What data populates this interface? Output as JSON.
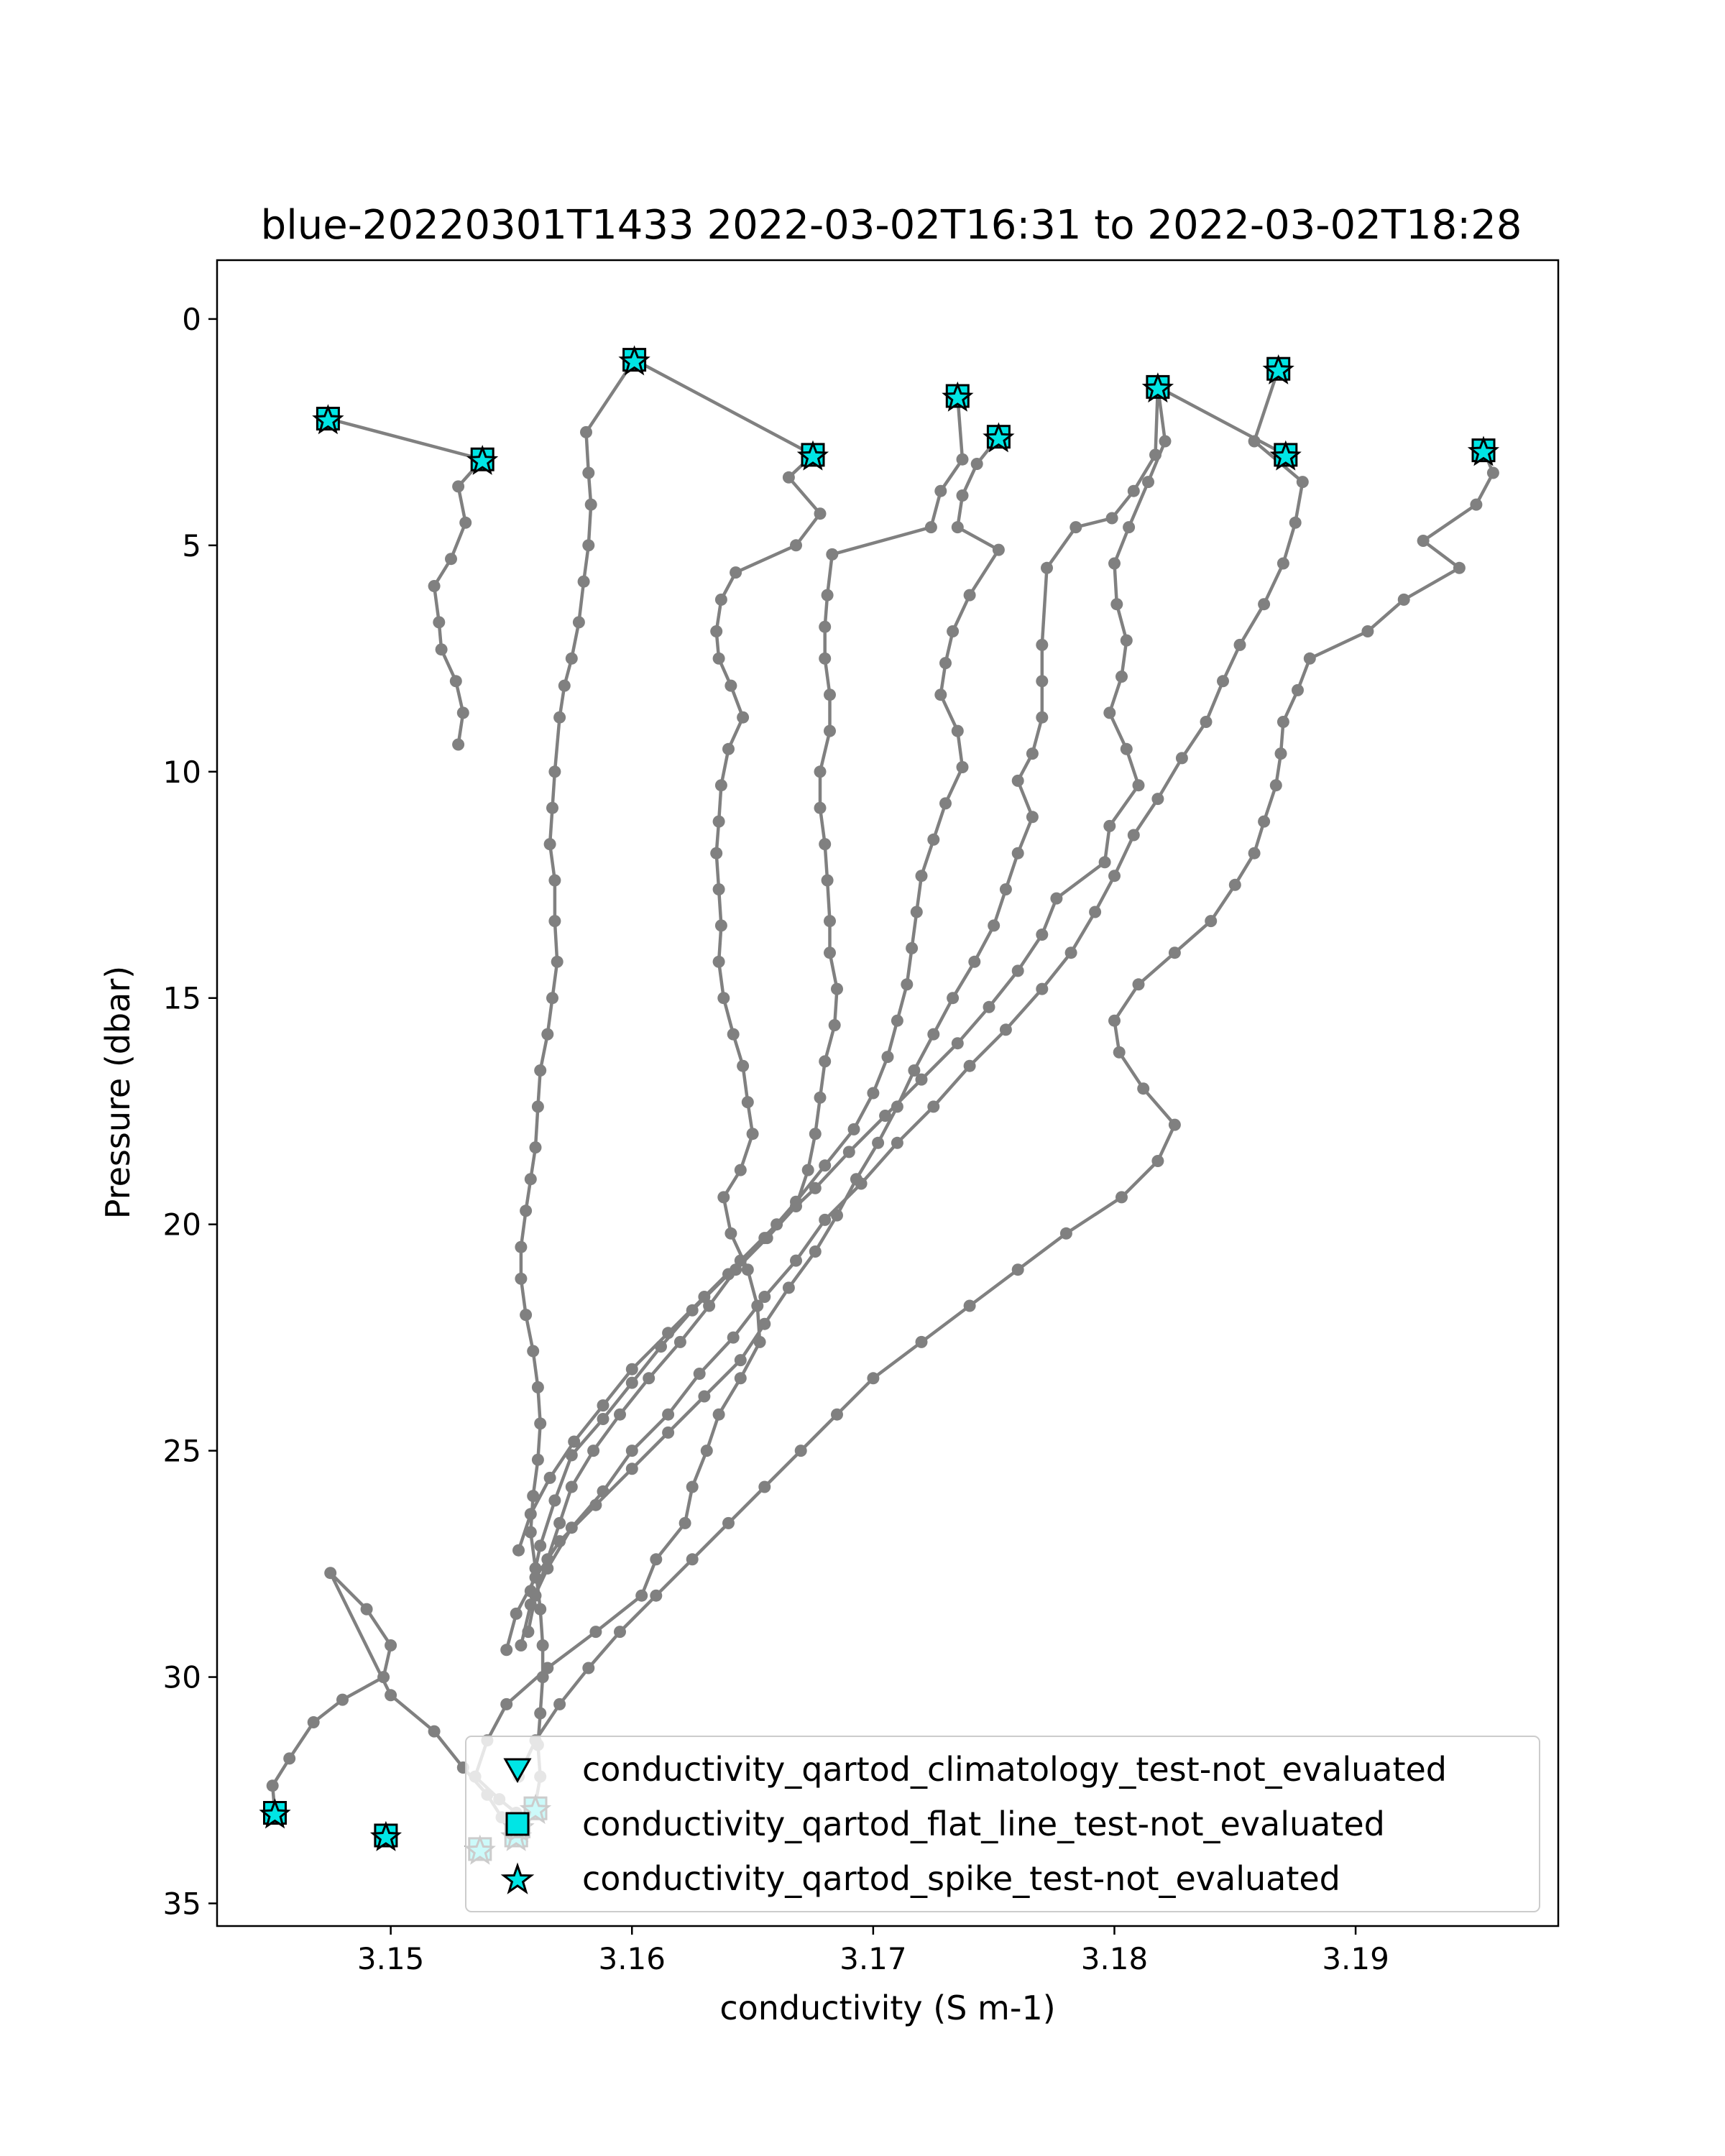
{
  "chart_data": {
    "type": "line",
    "title": "blue-20220301T1433 2022-03-02T16:31 to 2022-03-02T18:28",
    "xlabel": "conductivity (S m-1)",
    "ylabel": "Pressure (dbar)",
    "xlim": [
      3.1428,
      3.1984
    ],
    "ylim": [
      35.5,
      -1.3
    ],
    "y_inverted": true,
    "grid": false,
    "xticks": [
      3.15,
      3.16,
      3.17,
      3.18,
      3.19
    ],
    "xtick_labels": [
      "3.15",
      "3.16",
      "3.17",
      "3.18",
      "3.19"
    ],
    "yticks": [
      0,
      5,
      10,
      15,
      20,
      25,
      30,
      35
    ],
    "ytick_labels": [
      "0",
      "5",
      "10",
      "15",
      "20",
      "25",
      "30",
      "35"
    ],
    "line_color": "#808080",
    "marker_color": "#00e5e5",
    "legend_position": "lower right",
    "legend": [
      {
        "label": "conductivity_qartod_climatology_test-not_evaluated",
        "marker": "triangle-down"
      },
      {
        "label": "conductivity_qartod_flat_line_test-not_evaluated",
        "marker": "square"
      },
      {
        "label": "conductivity_qartod_spike_test-not_evaluated",
        "marker": "star"
      }
    ],
    "series": [
      {
        "x": [
          3.1474,
          3.1538,
          3.1528,
          3.1531,
          3.1525,
          3.1518,
          3.152,
          3.1521,
          3.1527,
          3.153,
          3.1528
        ],
        "y": [
          2.2,
          3.1,
          3.7,
          4.5,
          5.3,
          5.9,
          6.7,
          7.3,
          8.0,
          8.7,
          9.4
        ]
      },
      {
        "x": [
          3.1675,
          3.1601,
          3.1581,
          3.1582,
          3.1583,
          3.1582,
          3.158,
          3.1578,
          3.1575,
          3.1572,
          3.157,
          3.1568,
          3.1567,
          3.1566,
          3.1568,
          3.1568,
          3.1569,
          3.1567,
          3.1565,
          3.1562,
          3.1561,
          3.156,
          3.1558,
          3.1556,
          3.1554,
          3.1554,
          3.1556,
          3.1559,
          3.1561,
          3.1562,
          3.1561,
          3.1559,
          3.1558,
          3.156,
          3.1562,
          3.1563,
          3.1563,
          3.1562,
          3.1561,
          3.1562,
          3.156,
          3.1555,
          3.155,
          3.1546,
          3.154,
          3.153,
          3.1518,
          3.15,
          3.1475,
          3.149,
          3.15,
          3.1497,
          3.148,
          3.1468,
          3.1458,
          3.1451,
          3.1452
        ],
        "y": [
          3.0,
          0.9,
          2.5,
          3.4,
          4.1,
          5.0,
          5.8,
          6.7,
          7.5,
          8.1,
          8.8,
          10.0,
          10.8,
          11.6,
          12.4,
          13.3,
          14.2,
          15.0,
          15.8,
          16.6,
          17.4,
          18.3,
          19.0,
          19.7,
          20.5,
          21.2,
          22.0,
          22.8,
          23.6,
          24.4,
          25.2,
          26.0,
          26.8,
          27.6,
          28.5,
          29.3,
          30.0,
          30.8,
          31.5,
          32.2,
          32.8,
          33.3,
          33.5,
          33.1,
          32.6,
          32.0,
          31.2,
          30.4,
          27.7,
          28.5,
          29.3,
          30.0,
          30.5,
          31.0,
          31.8,
          32.4,
          33.0
        ]
      },
      {
        "x": [
          3.1735,
          3.1737,
          3.1728,
          3.1724,
          3.1683,
          3.1681,
          3.168,
          3.168,
          3.1682,
          3.1682,
          3.1678,
          3.1678,
          3.168,
          3.1681,
          3.1682,
          3.1682,
          3.1685,
          3.1684,
          3.168,
          3.1678,
          3.1676,
          3.1673,
          3.1668,
          3.1656,
          3.1643,
          3.1632,
          3.162,
          3.1607,
          3.1595,
          3.1584,
          3.1575,
          3.157,
          3.1565,
          3.156,
          3.1557
        ],
        "y": [
          1.7,
          3.1,
          3.8,
          4.6,
          5.2,
          6.1,
          6.8,
          7.5,
          8.3,
          9.1,
          10.0,
          10.8,
          11.6,
          12.4,
          13.3,
          14.0,
          14.8,
          15.6,
          16.4,
          17.2,
          18.0,
          18.8,
          19.6,
          20.3,
          21.0,
          21.8,
          22.6,
          23.4,
          24.2,
          25.0,
          25.8,
          26.6,
          27.4,
          28.2,
          29.0
        ]
      },
      {
        "x": [
          3.1675,
          3.1665,
          3.1678,
          3.1668,
          3.1643,
          3.1637,
          3.1635,
          3.1636,
          3.1641,
          3.1646,
          3.164,
          3.1637,
          3.1636,
          3.1635,
          3.1636,
          3.1637,
          3.1636,
          3.1638,
          3.1642,
          3.1646,
          3.1648,
          3.165,
          3.1645,
          3.1638,
          3.1641,
          3.1648,
          3.1652,
          3.1653,
          3.1645,
          3.1636,
          3.1631,
          3.1625,
          3.1622,
          3.161,
          3.1604,
          3.1585,
          3.1565,
          3.1548,
          3.154,
          3.1535,
          3.1545,
          3.1552,
          3.1553,
          3.1555
        ],
        "y": [
          3.0,
          3.5,
          4.3,
          5.0,
          5.6,
          6.2,
          6.9,
          7.5,
          8.1,
          8.8,
          9.5,
          10.3,
          11.1,
          11.8,
          12.6,
          13.4,
          14.2,
          15.0,
          15.8,
          16.5,
          17.3,
          18.0,
          18.8,
          19.4,
          20.2,
          21.0,
          21.8,
          22.6,
          23.4,
          24.2,
          25.0,
          25.8,
          26.6,
          27.4,
          28.2,
          29.0,
          29.8,
          30.6,
          31.4,
          32.2,
          32.7,
          33.0,
          33.3,
          33.5
        ]
      },
      {
        "x": [
          3.1752,
          3.1743,
          3.1737,
          3.1735,
          3.1752,
          3.174,
          3.1733,
          3.173,
          3.1728,
          3.1735,
          3.1737,
          3.173,
          3.1725,
          3.172,
          3.1718,
          3.1716,
          3.1714,
          3.171,
          3.1706,
          3.17,
          3.1692,
          3.168,
          3.1668,
          3.1655,
          3.164,
          3.1625,
          3.1612,
          3.16,
          3.1588,
          3.1575,
          3.1568,
          3.1562,
          3.1558
        ],
        "y": [
          2.6,
          3.2,
          3.9,
          4.6,
          5.1,
          6.1,
          6.9,
          7.6,
          8.3,
          9.1,
          9.9,
          10.7,
          11.5,
          12.3,
          13.1,
          13.9,
          14.7,
          15.5,
          16.3,
          17.1,
          17.9,
          18.7,
          19.5,
          20.3,
          21.1,
          21.9,
          22.7,
          23.5,
          24.3,
          25.1,
          26.1,
          27.1,
          28.1
        ]
      },
      {
        "x": [
          3.1818,
          3.1817,
          3.1808,
          3.1799,
          3.1784,
          3.1772,
          3.177,
          3.177,
          3.177,
          3.1766,
          3.176,
          3.1766,
          3.176,
          3.1755,
          3.175,
          3.1742,
          3.1733,
          3.1725,
          3.1717,
          3.171,
          3.1702,
          3.1693,
          3.1685,
          3.1676,
          3.1665,
          3.1655,
          3.1645,
          3.163,
          3.1615,
          3.16,
          3.1585,
          3.157,
          3.156,
          3.1552,
          3.1548
        ],
        "y": [
          1.5,
          3.0,
          3.8,
          4.4,
          4.6,
          5.5,
          7.2,
          8.0,
          8.8,
          9.6,
          10.2,
          11.0,
          11.8,
          12.6,
          13.4,
          14.2,
          15.0,
          15.8,
          16.6,
          17.4,
          18.2,
          19.0,
          19.8,
          20.6,
          21.4,
          22.2,
          23.0,
          23.8,
          24.6,
          25.4,
          26.2,
          27.0,
          27.8,
          28.6,
          29.4
        ]
      },
      {
        "x": [
          3.1871,
          3.1818,
          3.1821,
          3.1814,
          3.1806,
          3.18,
          3.1801,
          3.1805,
          3.1803,
          3.1798,
          3.1805,
          3.181,
          3.1798,
          3.1796,
          3.1776,
          3.177,
          3.176,
          3.1748,
          3.1735,
          3.172,
          3.1705,
          3.169,
          3.1676,
          3.166,
          3.1645,
          3.163,
          3.1615,
          3.16,
          3.1588,
          3.1576,
          3.1566,
          3.1558,
          3.1553
        ],
        "y": [
          3.0,
          1.5,
          2.7,
          3.6,
          4.6,
          5.4,
          6.3,
          7.1,
          7.9,
          8.7,
          9.5,
          10.3,
          11.2,
          12.0,
          12.8,
          13.6,
          14.4,
          15.2,
          16.0,
          16.8,
          17.6,
          18.4,
          19.2,
          20.0,
          20.8,
          21.6,
          22.4,
          23.2,
          24.0,
          24.8,
          25.6,
          26.4,
          27.2
        ]
      },
      {
        "x": [
          3.1868,
          3.1858,
          3.1878,
          3.1875,
          3.187,
          3.1862,
          3.1852,
          3.1845,
          3.1838,
          3.1828,
          3.1818,
          3.1808,
          3.18,
          3.1792,
          3.1782,
          3.177,
          3.1755,
          3.174,
          3.1725,
          3.171,
          3.1695,
          3.168,
          3.1668,
          3.1655,
          3.1642,
          3.1628,
          3.1615,
          3.16,
          3.1588,
          3.1575,
          3.1565,
          3.1558,
          3.1554
        ],
        "y": [
          1.1,
          2.7,
          3.6,
          4.5,
          5.4,
          6.3,
          7.2,
          8.0,
          8.9,
          9.7,
          10.6,
          11.4,
          12.3,
          13.1,
          14.0,
          14.8,
          15.7,
          16.5,
          17.4,
          18.2,
          19.1,
          19.9,
          20.8,
          21.6,
          22.5,
          23.3,
          24.2,
          25.0,
          25.9,
          26.7,
          27.6,
          28.4,
          29.3
        ]
      },
      {
        "x": [
          3.1953,
          3.1957,
          3.195,
          3.1928,
          3.1943,
          3.192,
          3.1905,
          3.1881,
          3.1876,
          3.187,
          3.1869,
          3.1867,
          3.1862,
          3.1858,
          3.185,
          3.184,
          3.1825,
          3.181,
          3.18,
          3.1802,
          3.1812,
          3.1825,
          3.1818,
          3.1803,
          3.178,
          3.176,
          3.174,
          3.172,
          3.17,
          3.1685,
          3.167,
          3.1655,
          3.164,
          3.1625,
          3.161,
          3.1595,
          3.1582,
          3.157,
          3.156,
          3.1553
        ],
        "y": [
          2.9,
          3.4,
          4.1,
          4.9,
          5.5,
          6.2,
          6.9,
          7.5,
          8.2,
          8.9,
          9.6,
          10.3,
          11.1,
          11.8,
          12.5,
          13.3,
          14.0,
          14.7,
          15.5,
          16.2,
          17.0,
          17.8,
          18.6,
          19.4,
          20.2,
          21.0,
          21.8,
          22.6,
          23.4,
          24.2,
          25.0,
          25.8,
          26.6,
          27.4,
          28.2,
          29.0,
          29.8,
          30.6,
          31.4,
          32.2
        ]
      }
    ],
    "flagged_points": [
      {
        "x": 3.1474,
        "y": 2.2
      },
      {
        "x": 3.1538,
        "y": 3.1
      },
      {
        "x": 3.1601,
        "y": 0.9
      },
      {
        "x": 3.1675,
        "y": 3.0
      },
      {
        "x": 3.1735,
        "y": 1.7
      },
      {
        "x": 3.1752,
        "y": 2.6
      },
      {
        "x": 3.1818,
        "y": 1.5
      },
      {
        "x": 3.1871,
        "y": 3.0
      },
      {
        "x": 3.1868,
        "y": 1.1
      },
      {
        "x": 3.1953,
        "y": 2.9
      },
      {
        "x": 3.1452,
        "y": 33.0
      },
      {
        "x": 3.1498,
        "y": 33.5
      },
      {
        "x": 3.1537,
        "y": 33.8
      },
      {
        "x": 3.1552,
        "y": 33.5
      },
      {
        "x": 3.1553,
        "y": 33.3
      },
      {
        "x": 3.156,
        "y": 32.9
      }
    ]
  }
}
